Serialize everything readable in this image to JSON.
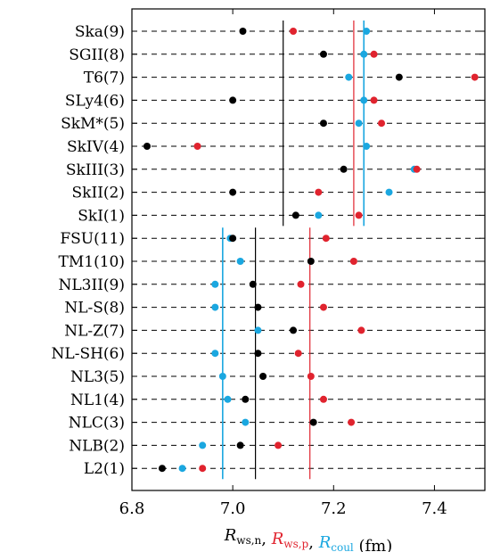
{
  "chart_data": {
    "type": "scatter",
    "xlabel_parts": [
      {
        "base": "R",
        "sub": "ws,n",
        "color": "#000000"
      },
      {
        "sep": ", "
      },
      {
        "base": "R",
        "sub": "ws,p",
        "color": "#e0232e"
      },
      {
        "sep": ", "
      },
      {
        "base": "R",
        "sub": "coul",
        "color": "#1aa7e0"
      },
      {
        "suffix": " (fm)"
      }
    ],
    "xlim": [
      6.8,
      7.5
    ],
    "xticks": [
      "6.8",
      "7.0",
      "7.2",
      "7.4"
    ],
    "xtick_values": [
      6.8,
      7.0,
      7.2,
      7.4
    ],
    "colors": {
      "n": "#000000",
      "p": "#e0232e",
      "coul": "#1aa7e0"
    },
    "categories": [
      "Ska(9)",
      "SGII(8)",
      "T6(7)",
      "SLy4(6)",
      "SkM*(5)",
      "SkIV(4)",
      "SkIII(3)",
      "SkII(2)",
      "SkI(1)",
      "FSU(11)",
      "TM1(10)",
      "NL3II(9)",
      "NL-S(8)",
      "NL-Z(7)",
      "NL-SH(6)",
      "NL3(5)",
      "NL1(4)",
      "NLC(3)",
      "NLB(2)",
      "L2(1)"
    ],
    "series": [
      {
        "key": "n",
        "values": [
          7.02,
          7.18,
          7.33,
          7.0,
          7.18,
          6.83,
          7.22,
          7.0,
          7.125,
          7.0,
          7.155,
          7.04,
          7.05,
          7.12,
          7.05,
          7.06,
          7.025,
          7.16,
          7.015,
          6.86
        ]
      },
      {
        "key": "p",
        "values": [
          7.12,
          7.28,
          7.48,
          7.28,
          7.295,
          6.93,
          7.365,
          7.17,
          7.25,
          7.185,
          7.24,
          7.135,
          7.18,
          7.255,
          7.13,
          7.155,
          7.18,
          7.235,
          7.09,
          6.94
        ]
      },
      {
        "key": "coul",
        "values": [
          7.265,
          7.26,
          7.23,
          7.26,
          7.25,
          7.265,
          7.36,
          7.31,
          7.17,
          6.995,
          7.015,
          6.965,
          6.965,
          7.05,
          6.965,
          6.98,
          6.99,
          7.025,
          6.94,
          6.9
        ]
      }
    ],
    "mean_lines": [
      {
        "key": "n",
        "group": "skyrme",
        "value": 7.1
      },
      {
        "key": "p",
        "group": "skyrme",
        "value": 7.24
      },
      {
        "key": "coul",
        "group": "skyrme",
        "value": 7.26
      },
      {
        "key": "n",
        "group": "rmf",
        "value": 7.045
      },
      {
        "key": "p",
        "group": "rmf",
        "value": 7.153
      },
      {
        "key": "coul",
        "group": "rmf",
        "value": 6.98
      }
    ],
    "groups": {
      "skyrme": [
        0,
        8
      ],
      "rmf": [
        9,
        19
      ]
    },
    "grid": "dashed horizontal per row",
    "legend": "none (colored x-axis label)"
  }
}
